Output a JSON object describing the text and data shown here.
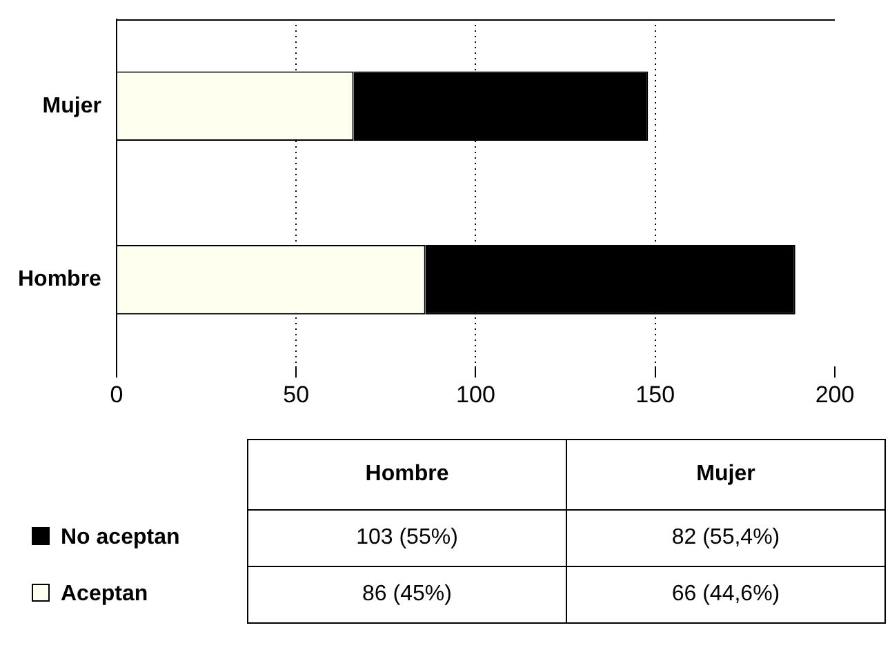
{
  "chart_data": {
    "type": "bar",
    "orientation": "horizontal",
    "stacked": true,
    "categories": [
      "Mujer",
      "Hombre"
    ],
    "series": [
      {
        "name": "Aceptan",
        "color": "#fffff0",
        "values": [
          66,
          86
        ]
      },
      {
        "name": "No aceptan",
        "color": "#000000",
        "values": [
          82,
          103
        ]
      }
    ],
    "annotations": [
      "103 (55%)",
      "82 (55,4%)",
      "86 (45%)",
      "66 (44,6%)"
    ],
    "xlim": [
      0,
      200
    ],
    "xticks": [
      0,
      50,
      100,
      150,
      200
    ],
    "grid": "x",
    "legend": "bottom"
  }
}
